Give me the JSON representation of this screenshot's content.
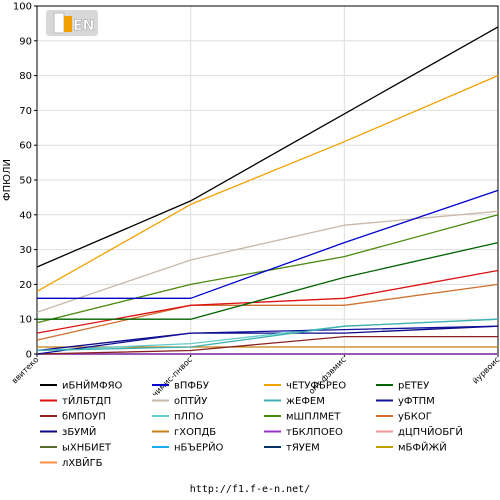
{
  "footer": "http://f1.f-e-n.net/",
  "logo": {
    "text": "F1EN",
    "name": "f1en-logo"
  },
  "chart_data": {
    "type": "line",
    "title": "",
    "xlabel": "",
    "ylabel": "ФПЮЛИ",
    "ylim": [
      0,
      100
    ],
    "yticks": [
      0,
      10,
      20,
      30,
      40,
      50,
      60,
      70,
      80,
      90,
      100
    ],
    "grid": true,
    "legend_position": "bottom",
    "categories": [
      "ввитеко",
      "чимис-пнвос",
      "опт фзвмис",
      "йурвоис"
    ],
    "series": [
      {
        "name": "иБНЙМФЯО",
        "color": "#000000",
        "values": [
          25,
          44,
          69,
          94
        ]
      },
      {
        "name": "вПФБУ",
        "color": "#0000cc",
        "values": [
          16,
          16,
          32,
          47
        ]
      },
      {
        "name": "чЕТУФБРЕО",
        "color": "#f0a000",
        "values": [
          18,
          43,
          61,
          80
        ]
      },
      {
        "name": "рЕТЕУ",
        "color": "#006400",
        "values": [
          10,
          10,
          22,
          32
        ]
      },
      {
        "name": "тЙЛБТДП",
        "color": "#dd1111",
        "values": [
          6,
          14,
          16,
          24
        ]
      },
      {
        "name": "оПТЙУ",
        "color": "#c8b8a8",
        "values": [
          12,
          27,
          37,
          41
        ]
      },
      {
        "name": "жЕФЕМ",
        "color": "#40b0b0",
        "values": [
          1,
          2,
          8,
          10
        ]
      },
      {
        "name": "уФТПМ",
        "color": "#111199",
        "values": [
          0,
          6,
          7,
          8
        ]
      },
      {
        "name": "бМПОУП",
        "color": "#882222",
        "values": [
          0,
          1,
          5,
          5
        ]
      },
      {
        "name": "пЛПО",
        "color": "#66cccc",
        "values": [
          1,
          3,
          8,
          10
        ]
      },
      {
        "name": "мШПЛМЕТ",
        "color": "#4a8a10",
        "values": [
          9,
          20,
          28,
          40
        ]
      },
      {
        "name": "уБКОГ",
        "color": "#d07030",
        "values": [
          4,
          14,
          14,
          20
        ]
      },
      {
        "name": "зБУМЙ",
        "color": "#0a0a88",
        "values": [
          1,
          6,
          6,
          8
        ]
      },
      {
        "name": "гХОПДБ",
        "color": "#c08010",
        "values": [
          2,
          2,
          2,
          2
        ]
      },
      {
        "name": "тБКЛПОЕО",
        "color": "#9933cc",
        "values": [
          0,
          0,
          0,
          0
        ]
      },
      {
        "name": "дЦПЧЙОБГЙ",
        "color": "#ee9999",
        "values": [
          0,
          0,
          0,
          0
        ]
      },
      {
        "name": "ыХНБИЕТ",
        "color": "#556b2f",
        "values": [
          0,
          0,
          0,
          0
        ]
      },
      {
        "name": "нБЪЕРЙО",
        "color": "#22aaee",
        "values": [
          0,
          0,
          0,
          0
        ]
      },
      {
        "name": "тЯУЕМ",
        "color": "#003366",
        "values": [
          0,
          0,
          0,
          0
        ]
      },
      {
        "name": "мБФЙЖЙ",
        "color": "#c0a000",
        "values": [
          0,
          0,
          0,
          0
        ]
      },
      {
        "name": "лХВЙГБ",
        "color": "#ff8c40",
        "values": [
          0,
          0,
          0,
          0
        ]
      }
    ]
  }
}
